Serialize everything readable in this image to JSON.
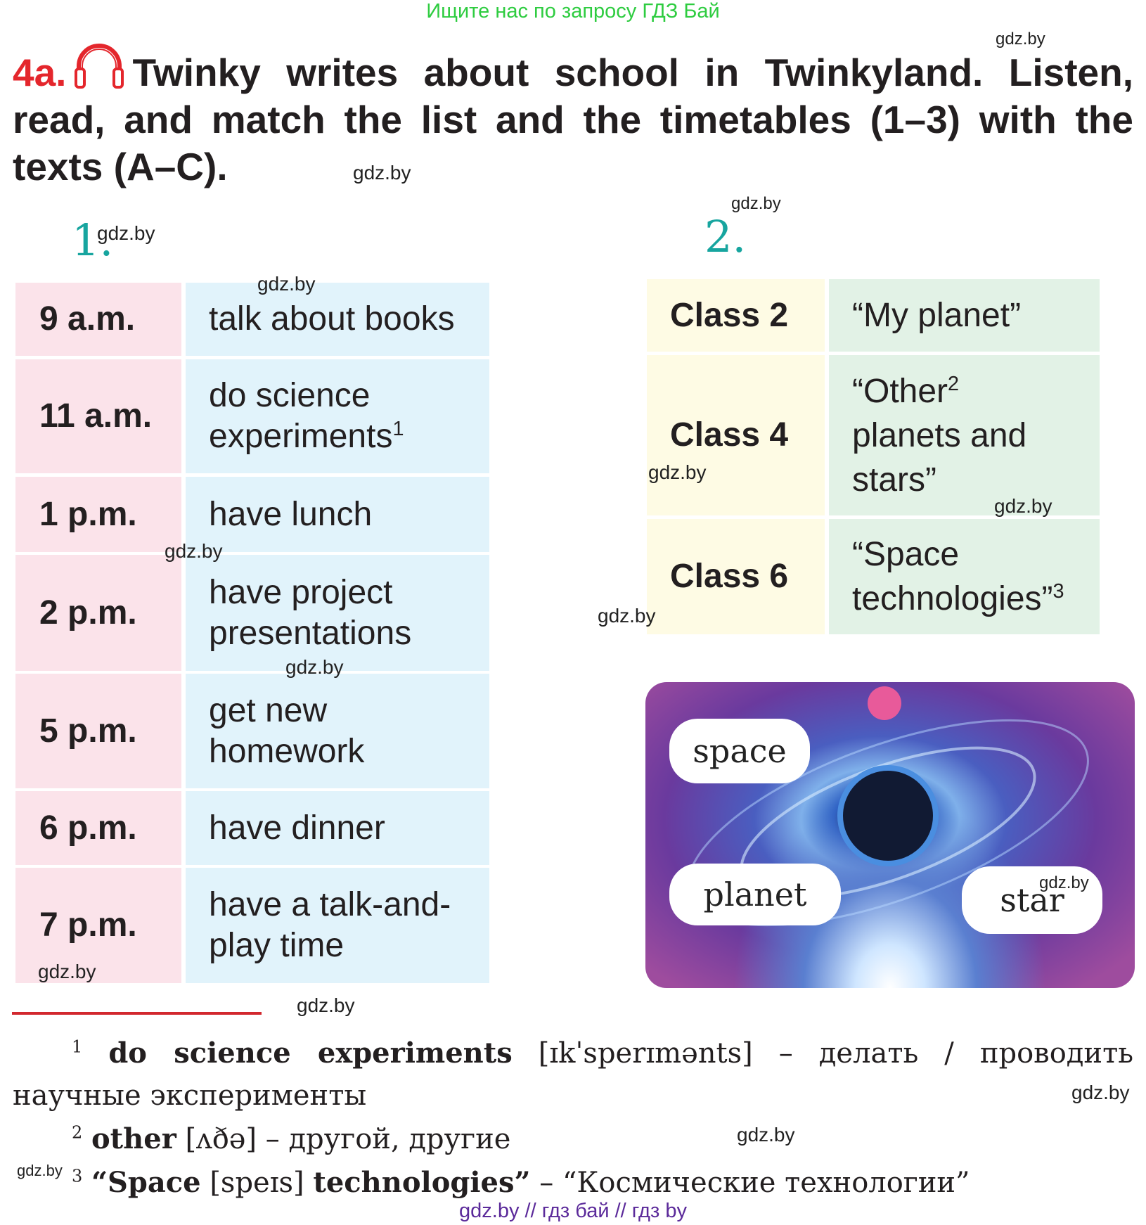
{
  "watermark_top": "Ищите нас по запросу ГДЗ Бай",
  "watermark": "gdz.by",
  "watermark_bottom": "gdz.by // гдз бай // гдз by",
  "exercise": {
    "number": "4a.",
    "icon": "headphones-icon",
    "instruction": "Twinky writes about school in Twinkyland. Listen, read, and match the list and the timetables (1–3) with the texts (A–C)."
  },
  "list1": {
    "label": "1.",
    "rows": [
      {
        "time": "9 a.m.",
        "activity": "talk about books"
      },
      {
        "time": "11 a.m.",
        "activity": "do science experiments",
        "sup": "1"
      },
      {
        "time": "1 p.m.",
        "activity": "have lunch"
      },
      {
        "time": "2 p.m.",
        "activity": "have project presentations"
      },
      {
        "time": "5 p.m.",
        "activity": "get new homework"
      },
      {
        "time": "6 p.m.",
        "activity": "have dinner"
      },
      {
        "time": "7 p.m.",
        "activity": "have a talk-and-play time"
      }
    ]
  },
  "list2": {
    "label": "2.",
    "rows": [
      {
        "class": "Class 2",
        "topic": "“My planet”"
      },
      {
        "class": "Class 4",
        "topic": "“Other",
        "sup": "2",
        "topic2": "planets and stars”"
      },
      {
        "class": "Class 6",
        "topic": "“Space technologies”",
        "sup": "3"
      }
    ]
  },
  "picture": {
    "labels": [
      "space",
      "planet",
      "star"
    ]
  },
  "footnotes": [
    {
      "n": "1",
      "term": "do science experiments",
      "ipa": "[ɪkˈsperɪmənts]",
      "translation": "– делать / проводить научные эксперименты"
    },
    {
      "n": "2",
      "term": "other",
      "ipa": "[ʌðə]",
      "translation": "– другой, другие"
    },
    {
      "n": "3",
      "term": "“Space",
      "ipa": "[speɪs]",
      "term2": "technologies”",
      "translation": "– “Космические технологии”"
    }
  ],
  "colors": {
    "time_bg": "#fbe3ea",
    "activity_bg": "#e1f3fb",
    "class_bg": "#fefbe4",
    "topic_bg": "#e2f2e6",
    "accent_red": "#e4262c",
    "teal": "#17a59f"
  }
}
